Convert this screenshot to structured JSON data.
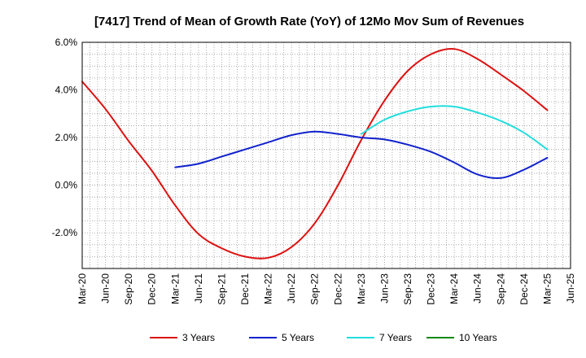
{
  "chart_data": {
    "type": "line",
    "title": "[7417]  Trend of Mean of Growth Rate (YoY) of 12Mo Mov Sum of Revenues",
    "xlabel": "",
    "ylabel": "",
    "ylim": [
      -3.5,
      6.0
    ],
    "y_ticks": [
      6.0,
      4.0,
      2.0,
      0.0,
      -2.0
    ],
    "y_tick_labels": [
      "6.0%",
      "4.0%",
      "2.0%",
      "0.0%",
      "-2.0%"
    ],
    "x_range": [
      "Mar-20",
      "Jun-25"
    ],
    "x_tick_labels": [
      "Mar-20",
      "Jun-20",
      "Sep-20",
      "Dec-20",
      "Mar-21",
      "Jun-21",
      "Sep-21",
      "Dec-21",
      "Mar-22",
      "Jun-22",
      "Sep-22",
      "Dec-22",
      "Mar-23",
      "Jun-23",
      "Sep-23",
      "Dec-23",
      "Mar-24",
      "Jun-24",
      "Sep-24",
      "Dec-24",
      "Mar-25",
      "Jun-25"
    ],
    "grid": true,
    "legend_position": "bottom",
    "series": [
      {
        "name": "3 Years",
        "color": "#dd1111",
        "x": [
          "Mar-20",
          "Jun-20",
          "Sep-20",
          "Dec-20",
          "Mar-21",
          "Jun-21",
          "Sep-21",
          "Dec-21",
          "Mar-22",
          "Jun-22",
          "Sep-22",
          "Dec-22",
          "Mar-23",
          "Jun-23",
          "Sep-23",
          "Dec-23",
          "Mar-24",
          "Jun-24",
          "Sep-24",
          "Dec-24",
          "Mar-25"
        ],
        "values": [
          4.35,
          3.2,
          1.85,
          0.6,
          -0.85,
          -2.05,
          -2.65,
          -3.0,
          -3.05,
          -2.6,
          -1.6,
          0.0,
          1.9,
          3.55,
          4.8,
          5.5,
          5.72,
          5.3,
          4.65,
          3.95,
          3.15
        ]
      },
      {
        "name": "5 Years",
        "color": "#1122cc",
        "x": [
          "Mar-21",
          "Jun-21",
          "Sep-21",
          "Dec-21",
          "Mar-22",
          "Jun-22",
          "Sep-22",
          "Dec-22",
          "Mar-23",
          "Jun-23",
          "Sep-23",
          "Dec-23",
          "Mar-24",
          "Jun-24",
          "Sep-24",
          "Dec-24",
          "Mar-25"
        ],
        "values": [
          0.75,
          0.9,
          1.2,
          1.5,
          1.8,
          2.1,
          2.25,
          2.15,
          2.0,
          1.92,
          1.7,
          1.4,
          0.95,
          0.45,
          0.3,
          0.65,
          1.15
        ]
      },
      {
        "name": "7 Years",
        "color": "#22dddd",
        "x": [
          "Mar-23",
          "Jun-23",
          "Sep-23",
          "Dec-23",
          "Mar-24",
          "Jun-24",
          "Sep-24",
          "Dec-24",
          "Mar-25"
        ],
        "values": [
          2.15,
          2.75,
          3.1,
          3.3,
          3.3,
          3.05,
          2.7,
          2.2,
          1.5
        ]
      },
      {
        "name": "10 Years",
        "color": "#118811",
        "x": [],
        "values": []
      }
    ]
  }
}
